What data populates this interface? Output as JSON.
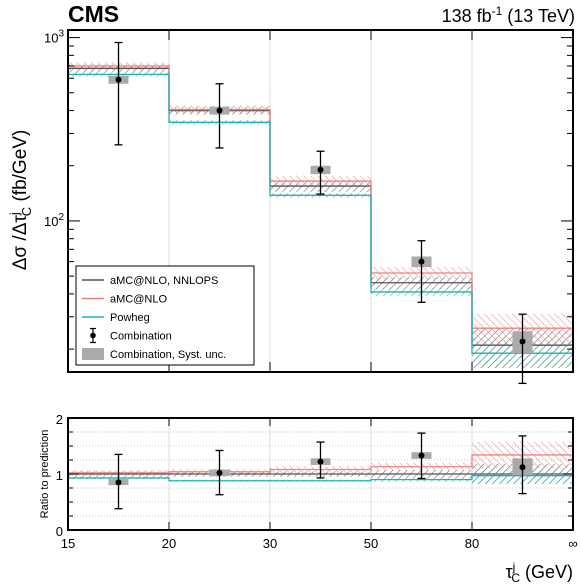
{
  "header": {
    "experiment": "CMS",
    "lumi": "138 fb",
    "lumi_exp": "-1",
    "energy": " (13 TeV)"
  },
  "axes": {
    "ylabel_main": "Δσ /Δτ",
    "ylabel_main_sub": "C",
    "ylabel_main_sup": "j",
    "ylabel_main_unit": " (fb/GeV)",
    "ylabel_ratio": "Ratio to prediction",
    "xlabel": "τ",
    "xlabel_sub": "C",
    "xlabel_sup": "j",
    "xlabel_unit": " (GeV)",
    "x_tick_labels": [
      "15",
      "20",
      "30",
      "50",
      "80",
      "∞"
    ],
    "y_main_ticks": [
      {
        "base": "10",
        "exp": "2",
        "value": 100
      },
      {
        "base": "10",
        "exp": "3",
        "value": 1000
      }
    ],
    "y_ratio_ticks": [
      "0",
      "1",
      "2"
    ]
  },
  "legend": {
    "items": [
      {
        "label": "aMC@NLO, NNLOPS",
        "color": "#555555",
        "kind": "line"
      },
      {
        "label": "aMC@NLO",
        "color": "#f08080",
        "kind": "line"
      },
      {
        "label": "Powheg",
        "color": "#20b2aa",
        "kind": "line"
      },
      {
        "label": "Combination",
        "color": "#000000",
        "kind": "marker"
      },
      {
        "label": "Combination, Syst. unc.",
        "color": "#aaaaaa",
        "kind": "box"
      }
    ]
  },
  "chart_data": {
    "type": "line",
    "x_bins": [
      "15-20",
      "20-30",
      "30-50",
      "50-80",
      "80-∞"
    ],
    "y_scale": "log",
    "ylim": [
      15,
      1100
    ],
    "ratio_ylim": [
      0,
      2
    ],
    "data": {
      "name": "Combination",
      "values": [
        590,
        400,
        190,
        60,
        22
      ],
      "stat_low": [
        260,
        250,
        140,
        36,
        13
      ],
      "stat_high": [
        940,
        560,
        240,
        78,
        31
      ],
      "syst_low": [
        560,
        380,
        180,
        56,
        19
      ],
      "syst_high": [
        620,
        420,
        200,
        64,
        25
      ]
    },
    "predictions": [
      {
        "name": "aMC@NLO, NNLOPS",
        "color": "#555555",
        "values": [
          680,
          400,
          155,
          46,
          21
        ],
        "unc": [
          0.05,
          0.05,
          0.07,
          0.08,
          0.25
        ]
      },
      {
        "name": "aMC@NLO",
        "color": "#f08080",
        "values": [
          700,
          405,
          165,
          52,
          26
        ],
        "unc": [
          0.05,
          0.05,
          0.07,
          0.08,
          0.2
        ]
      },
      {
        "name": "Powheg",
        "color": "#20b2aa",
        "values": [
          630,
          345,
          138,
          41,
          19
        ],
        "unc": [
          0.03,
          0.03,
          0.03,
          0.05,
          0.15
        ]
      }
    ],
    "ratio": {
      "data": [
        0.85,
        1.02,
        1.22,
        1.33,
        1.12
      ],
      "stat_low": [
        0.38,
        0.63,
        0.93,
        0.92,
        0.65
      ],
      "stat_high": [
        1.35,
        1.42,
        1.57,
        1.73,
        1.68
      ],
      "syst_low": [
        0.8,
        0.96,
        1.16,
        1.27,
        0.98
      ],
      "syst_high": [
        0.91,
        1.08,
        1.28,
        1.39,
        1.28
      ],
      "predictions": [
        {
          "name": "aMC@NLO, NNLOPS",
          "values": [
            1.0,
            1.0,
            1.0,
            1.0,
            1.0
          ],
          "unc_low": [
            0.95,
            0.95,
            0.95,
            0.93,
            0.82
          ],
          "unc_high": [
            1.05,
            1.05,
            1.05,
            1.07,
            1.18
          ]
        },
        {
          "name": "aMC@NLO",
          "values": [
            1.02,
            1.04,
            1.08,
            1.13,
            1.34
          ],
          "unc_low": [
            0.97,
            0.99,
            1.02,
            1.06,
            1.1
          ],
          "unc_high": [
            1.07,
            1.09,
            1.14,
            1.2,
            1.58
          ]
        },
        {
          "name": "Powheg",
          "values": [
            0.93,
            0.88,
            0.88,
            0.9,
            0.97
          ],
          "unc_low": [
            0.91,
            0.86,
            0.86,
            0.86,
            0.84
          ],
          "unc_high": [
            0.95,
            0.9,
            0.9,
            0.94,
            1.1
          ]
        }
      ]
    }
  }
}
